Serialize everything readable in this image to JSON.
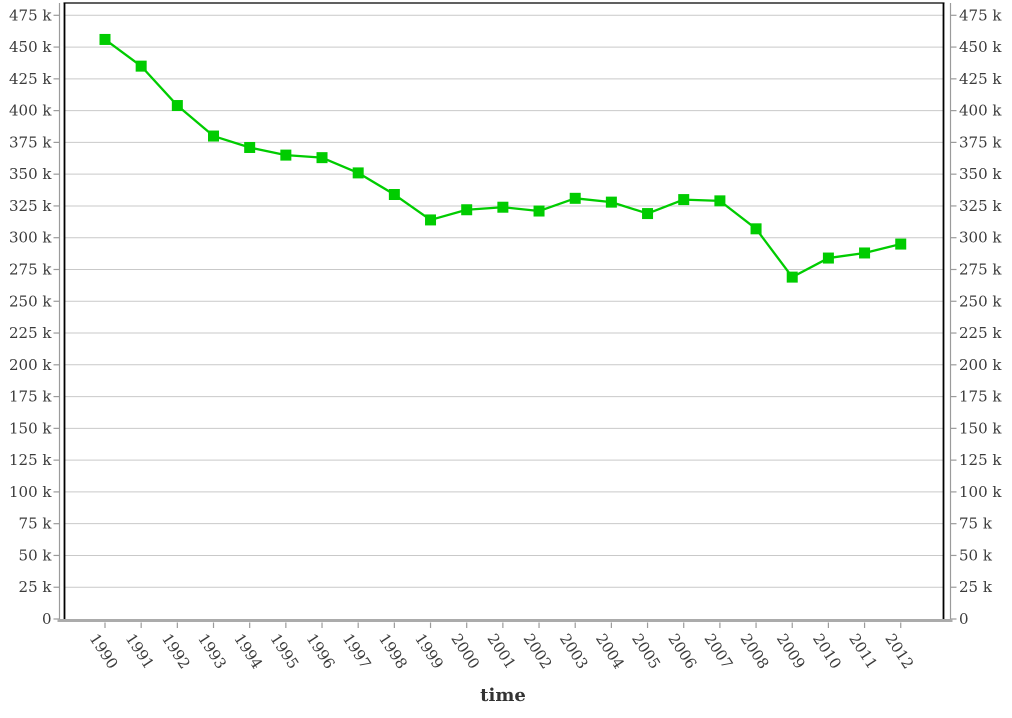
{
  "chart_data": {
    "type": "line",
    "title": "",
    "xlabel": "time",
    "ylabel": "",
    "x_categories": [
      "1990",
      "1991",
      "1992",
      "1993",
      "1994",
      "1995",
      "1996",
      "1997",
      "1998",
      "1999",
      "2000",
      "2001",
      "2002",
      "2003",
      "2004",
      "2005",
      "2006",
      "2007",
      "2008",
      "2009",
      "2010",
      "2011",
      "2012"
    ],
    "series": [
      {
        "name": "series-1",
        "marker": "square",
        "color": "#00CC00",
        "values_k": [
          456,
          435,
          404,
          380,
          371,
          365,
          363,
          351,
          334,
          314,
          322,
          324,
          321,
          331,
          328,
          319,
          330,
          329,
          307,
          269,
          284,
          288,
          295
        ]
      }
    ],
    "y_unit": "thousands (k)",
    "ylim_k": [
      0,
      485
    ],
    "y_ticks": [
      {
        "value": 0,
        "label": "0"
      },
      {
        "value": 25,
        "label": "25 k"
      },
      {
        "value": 50,
        "label": "50 k"
      },
      {
        "value": 75,
        "label": "75 k"
      },
      {
        "value": 100,
        "label": "100 k"
      },
      {
        "value": 125,
        "label": "125 k"
      },
      {
        "value": 150,
        "label": "150 k"
      },
      {
        "value": 175,
        "label": "175 k"
      },
      {
        "value": 200,
        "label": "200 k"
      },
      {
        "value": 225,
        "label": "225 k"
      },
      {
        "value": 250,
        "label": "250 k"
      },
      {
        "value": 275,
        "label": "275 k"
      },
      {
        "value": 300,
        "label": "300 k"
      },
      {
        "value": 325,
        "label": "325 k"
      },
      {
        "value": 350,
        "label": "350 k"
      },
      {
        "value": 375,
        "label": "375 k"
      },
      {
        "value": 400,
        "label": "400 k"
      },
      {
        "value": 425,
        "label": "425 k"
      },
      {
        "value": 450,
        "label": "450 k"
      },
      {
        "value": 475,
        "label": "475 k"
      }
    ],
    "grid": "horizontal",
    "legend": "none",
    "dual_y_axis_labels": true
  },
  "colors": {
    "series_green": "#00CC00",
    "gridline": "#C9C9C9",
    "plot_frame": "#000000",
    "axis_line": "#9B9B9B",
    "x_axis_line": "#ABABAB",
    "label_text": "#3B3B3B"
  }
}
